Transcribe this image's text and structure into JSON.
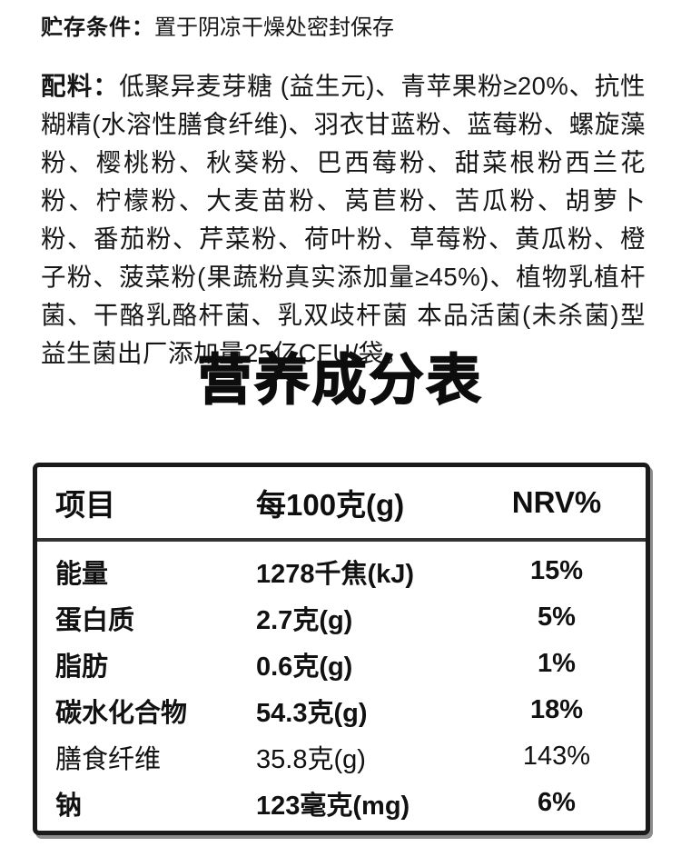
{
  "page": {
    "background": "#ffffff",
    "text_color": "#161616"
  },
  "storage": {
    "label": "贮存条件：",
    "value": "置于阴凉干燥处密封保存"
  },
  "ingredients": {
    "label": "配料：",
    "value": "低聚异麦芽糖 (益生元)、青苹果粉≥20%、抗性糊精(水溶性膳食纤维)、羽衣甘蓝粉、蓝莓粉、螺旋藻粉、樱桃粉、秋葵粉、巴西莓粉、甜菜根粉西兰花粉、柠檬粉、大麦苗粉、莴苣粉、苦瓜粉、胡萝卜粉、番茄粉、芹菜粉、荷叶粉、草莓粉、黄瓜粉、橙子粉、菠菜粉(果蔬粉真实添加量≥45%)、植物乳植杆菌、干酪乳酪杆菌、乳双歧杆菌 本品活菌(未杀菌)型益生菌出厂添加量25亿CFU/袋。"
  },
  "nutrition_table": {
    "title": "营养成分表",
    "headers": {
      "item": "项目",
      "per100g": "每100克(g)",
      "nrv": "NRV%"
    },
    "rows": [
      {
        "item": "能量",
        "per100g": "1278千焦(kJ)",
        "nrv": "15%",
        "weight": "bold"
      },
      {
        "item": "蛋白质",
        "per100g": "2.7克(g)",
        "nrv": "5%",
        "weight": "bold"
      },
      {
        "item": "脂肪",
        "per100g": "0.6克(g)",
        "nrv": "1%",
        "weight": "bold"
      },
      {
        "item": "碳水化合物",
        "per100g": "54.3克(g)",
        "nrv": "18%",
        "weight": "bold"
      },
      {
        "item": "膳食纤维",
        "per100g": "35.8克(g)",
        "nrv": "143%",
        "weight": "regular"
      },
      {
        "item": "钠",
        "per100g": "123毫克(mg)",
        "nrv": "6%",
        "weight": "bold"
      }
    ],
    "border_color": "#1a1a1a",
    "shadow_color": "#8c8c8c"
  }
}
